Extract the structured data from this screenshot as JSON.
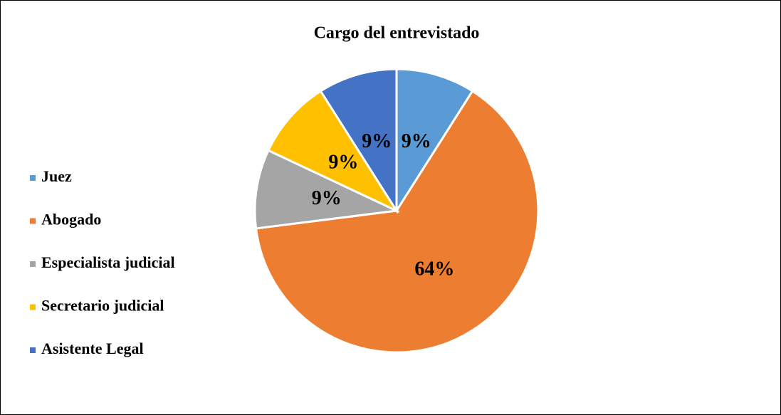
{
  "chart_data": {
    "type": "pie",
    "title": "Cargo del entrevistado",
    "categories": [
      "Juez",
      "Abogado",
      "Especialista judicial",
      "Secretario judicial",
      "Asistente Legal"
    ],
    "values": [
      9,
      64,
      9,
      9,
      9
    ],
    "value_labels": [
      "9%",
      "64%",
      "9%",
      "9%",
      "9%"
    ],
    "colors": [
      "#5b9bd5",
      "#ed7d31",
      "#a5a5a5",
      "#ffc000",
      "#4472c4"
    ],
    "legend": "left"
  }
}
